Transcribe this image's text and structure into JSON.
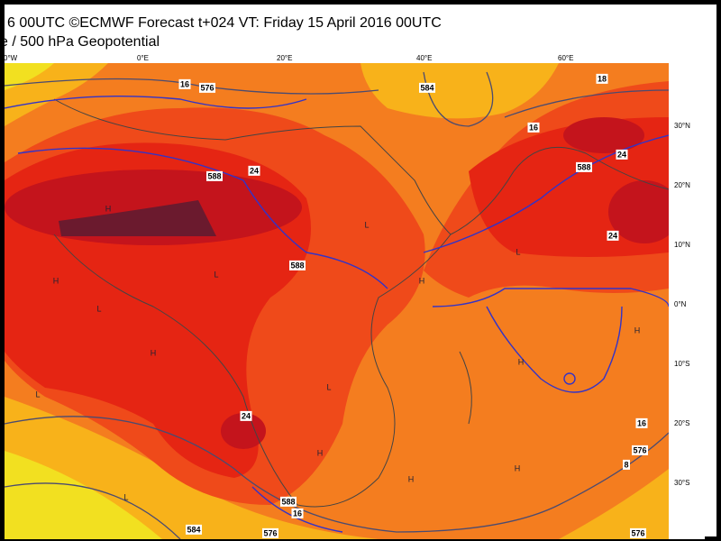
{
  "header": {
    "title": "6 00UTC ©ECMWF Forecast t+024 VT: Friday 15 April 2016 00UTC",
    "subtitle": "e / 500 hPa Geopotential"
  },
  "map": {
    "longitude_labels": [
      "0°W",
      "0°E",
      "20°E",
      "40°E",
      "60°E"
    ],
    "latitude_labels": [
      "30°N",
      "20°N",
      "10°N",
      "0°N",
      "10°S",
      "20°S",
      "30°S"
    ],
    "contour_labels": [
      "16",
      "576",
      "584",
      "16",
      "18",
      "24",
      "588",
      "24",
      "24",
      "588",
      "588",
      "24",
      "16",
      "588",
      "16",
      "584",
      "576",
      "576",
      "8",
      "576"
    ],
    "pressure_centers": [
      "H",
      "L",
      "H",
      "L",
      "H",
      "L",
      "H",
      "L",
      "H",
      "H",
      "L",
      "H",
      "H",
      "L",
      "H",
      "L"
    ]
  }
}
